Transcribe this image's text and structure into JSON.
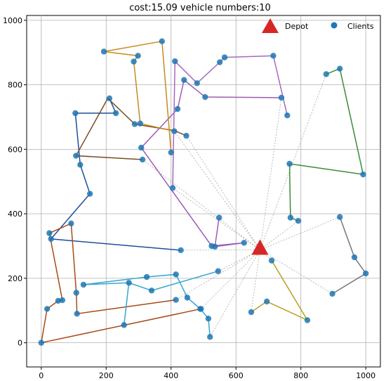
{
  "chart_data": {
    "type": "scatter",
    "title": "cost:15.09 vehicle numbers:10",
    "xlabel": "",
    "ylabel": "",
    "xlim": [
      -45,
      1045
    ],
    "ylim": [
      -75,
      1015
    ],
    "xticks": [
      0,
      200,
      400,
      600,
      800,
      1000
    ],
    "yticks": [
      0,
      200,
      400,
      600,
      800,
      1000
    ],
    "grid": true,
    "legend": {
      "position": "top-right",
      "entries": [
        "Depot",
        "Clients"
      ]
    },
    "depot": {
      "x": 674,
      "y": 288
    },
    "colors": {
      "depot": "#d62728",
      "client": "#1f77b4",
      "dashed": "#aaaaaa"
    },
    "routes": [
      {
        "color": "#1f4e9a",
        "points": [
          [
            674,
            288
          ],
          [
            430,
            287
          ],
          [
            30,
            322
          ],
          [
            150,
            462
          ],
          [
            120,
            552
          ],
          [
            105,
            712
          ],
          [
            230,
            712
          ],
          [
            210,
            758
          ]
        ]
      },
      {
        "color": "#a84a16",
        "points": [
          [
            674,
            288
          ],
          [
            415,
            133
          ],
          [
            110,
            90
          ],
          [
            108,
            155
          ],
          [
            92,
            370
          ],
          [
            25,
            340
          ],
          [
            65,
            132
          ],
          [
            52,
            130
          ],
          [
            18,
            105
          ],
          [
            0,
            0
          ],
          [
            492,
            105
          ]
        ]
      },
      {
        "color": "#38a5cf",
        "points": [
          [
            674,
            288
          ],
          [
            545,
            222
          ],
          [
            340,
            162
          ],
          [
            270,
            186
          ],
          [
            255,
            55
          ],
          [
            270,
            186
          ],
          [
            130,
            180
          ],
          [
            325,
            204
          ],
          [
            415,
            212
          ],
          [
            450,
            140
          ],
          [
            490,
            105
          ],
          [
            515,
            75
          ],
          [
            520,
            18
          ]
        ]
      },
      {
        "color": "#b8a020",
        "points": [
          [
            674,
            288
          ],
          [
            710,
            255
          ],
          [
            820,
            70
          ],
          [
            695,
            128
          ],
          [
            647,
            95
          ]
        ]
      },
      {
        "color": "#72787f",
        "points": [
          [
            674,
            288
          ],
          [
            897,
            152
          ],
          [
            1000,
            215
          ],
          [
            965,
            265
          ],
          [
            920,
            390
          ]
        ]
      },
      {
        "color": "#3a8c3a",
        "points": [
          [
            674,
            288
          ],
          [
            792,
            378
          ],
          [
            768,
            388
          ],
          [
            765,
            555
          ],
          [
            992,
            522
          ],
          [
            920,
            850
          ],
          [
            878,
            833
          ]
        ]
      },
      {
        "color": "#7a4c24",
        "points": [
          [
            674,
            288
          ],
          [
            312,
            568
          ],
          [
            107,
            580
          ],
          [
            205,
            758
          ],
          [
            288,
            678
          ],
          [
            410,
            658
          ],
          [
            447,
            642
          ]
        ]
      },
      {
        "color": "#9c5cb7",
        "points": [
          [
            674,
            288
          ],
          [
            548,
            388
          ],
          [
            535,
            298
          ],
          [
            625,
            310
          ],
          [
            525,
            300
          ],
          [
            308,
            605
          ],
          [
            420,
            725
          ],
          [
            440,
            815
          ],
          [
            505,
            762
          ],
          [
            740,
            760
          ]
        ]
      },
      {
        "color": "#a569bd",
        "points": [
          [
            674,
            288
          ],
          [
            758,
            705
          ],
          [
            715,
            890
          ],
          [
            565,
            885
          ],
          [
            550,
            870
          ],
          [
            480,
            805
          ],
          [
            412,
            873
          ],
          [
            405,
            480
          ]
        ]
      },
      {
        "color": "#c88a1e",
        "points": [
          [
            674,
            288
          ],
          [
            400,
            590
          ],
          [
            372,
            935
          ],
          [
            193,
            903
          ],
          [
            298,
            890
          ],
          [
            285,
            872
          ],
          [
            305,
            680
          ],
          [
            410,
            656
          ]
        ]
      }
    ],
    "dashed_targets": [
      [
        740,
        760
      ],
      [
        878,
        833
      ],
      [
        920,
        390
      ],
      [
        520,
        18
      ],
      [
        647,
        95
      ],
      [
        405,
        480
      ],
      [
        447,
        642
      ],
      [
        410,
        656
      ],
      [
        312,
        568
      ],
      [
        430,
        287
      ],
      [
        415,
        133
      ],
      [
        545,
        222
      ],
      [
        792,
        378
      ],
      [
        897,
        152
      ],
      [
        492,
        105
      ],
      [
        710,
        255
      ]
    ],
    "clients": [
      [
        0,
        0
      ],
      [
        18,
        105
      ],
      [
        52,
        130
      ],
      [
        65,
        132
      ],
      [
        25,
        340
      ],
      [
        30,
        322
      ],
      [
        92,
        370
      ],
      [
        108,
        155
      ],
      [
        110,
        90
      ],
      [
        130,
        180
      ],
      [
        150,
        462
      ],
      [
        120,
        552
      ],
      [
        105,
        712
      ],
      [
        107,
        580
      ],
      [
        230,
        712
      ],
      [
        210,
        758
      ],
      [
        193,
        903
      ],
      [
        255,
        55
      ],
      [
        270,
        186
      ],
      [
        288,
        678
      ],
      [
        285,
        872
      ],
      [
        298,
        890
      ],
      [
        305,
        680
      ],
      [
        308,
        605
      ],
      [
        312,
        568
      ],
      [
        325,
        204
      ],
      [
        340,
        162
      ],
      [
        372,
        935
      ],
      [
        400,
        590
      ],
      [
        405,
        480
      ],
      [
        410,
        656
      ],
      [
        412,
        873
      ],
      [
        415,
        133
      ],
      [
        415,
        212
      ],
      [
        420,
        725
      ],
      [
        430,
        287
      ],
      [
        440,
        815
      ],
      [
        447,
        642
      ],
      [
        450,
        140
      ],
      [
        480,
        805
      ],
      [
        490,
        105
      ],
      [
        492,
        105
      ],
      [
        505,
        762
      ],
      [
        515,
        75
      ],
      [
        520,
        18
      ],
      [
        525,
        300
      ],
      [
        535,
        298
      ],
      [
        545,
        222
      ],
      [
        548,
        388
      ],
      [
        550,
        870
      ],
      [
        565,
        885
      ],
      [
        625,
        310
      ],
      [
        647,
        95
      ],
      [
        695,
        128
      ],
      [
        710,
        255
      ],
      [
        715,
        890
      ],
      [
        740,
        760
      ],
      [
        758,
        705
      ],
      [
        765,
        555
      ],
      [
        768,
        388
      ],
      [
        792,
        378
      ],
      [
        820,
        70
      ],
      [
        878,
        833
      ],
      [
        897,
        152
      ],
      [
        920,
        850
      ],
      [
        920,
        390
      ],
      [
        965,
        265
      ],
      [
        992,
        522
      ],
      [
        1000,
        215
      ]
    ]
  }
}
